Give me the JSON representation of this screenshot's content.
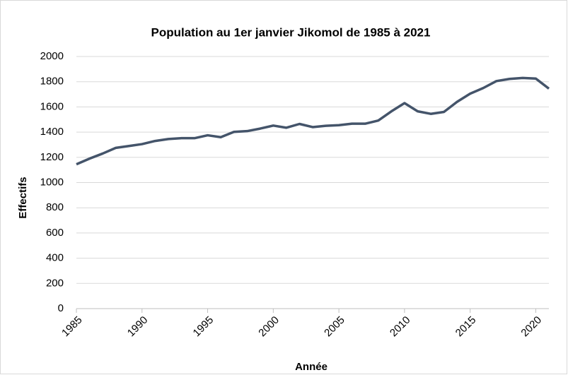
{
  "chart_data": {
    "type": "line",
    "title": "Population au 1er janvier Jikomol de 1985 à 2021",
    "x_label": "Année",
    "y_label": "Effectifs",
    "x": [
      1985,
      1986,
      1987,
      1988,
      1989,
      1990,
      1991,
      1992,
      1993,
      1994,
      1995,
      1996,
      1997,
      1998,
      1999,
      2000,
      2001,
      2002,
      2003,
      2004,
      2005,
      2006,
      2007,
      2008,
      2009,
      2010,
      2011,
      2012,
      2013,
      2014,
      2015,
      2016,
      2017,
      2018,
      2019,
      2020,
      2021
    ],
    "series": [
      {
        "name": "Effectifs",
        "color": "#44546a",
        "values": [
          1145,
          1190,
          1230,
          1275,
          1290,
          1305,
          1330,
          1345,
          1352,
          1352,
          1375,
          1360,
          1402,
          1408,
          1428,
          1452,
          1435,
          1465,
          1440,
          1450,
          1455,
          1467,
          1467,
          1492,
          1565,
          1630,
          1565,
          1545,
          1560,
          1640,
          1705,
          1750,
          1805,
          1822,
          1830,
          1825,
          1745
        ]
      }
    ],
    "xlim": [
      1985,
      2021
    ],
    "xticks": [
      1985,
      1990,
      1995,
      2000,
      2005,
      2010,
      2015,
      2020
    ],
    "ylim": [
      0,
      2000
    ],
    "yticks": [
      0,
      200,
      400,
      600,
      800,
      1000,
      1200,
      1400,
      1600,
      1800,
      2000
    ],
    "grid": true
  }
}
